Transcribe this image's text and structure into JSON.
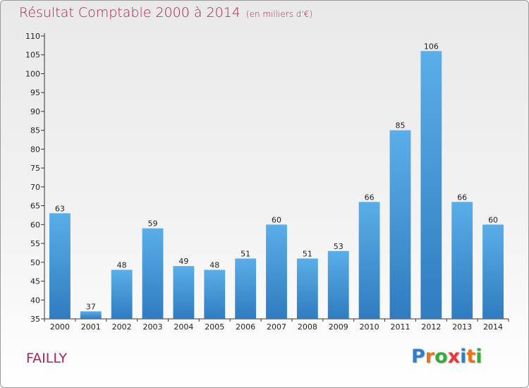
{
  "chart_data": {
    "type": "bar",
    "title": "Résultat Comptable 2000 à 2014",
    "subtitle": "(en milliers d'€)",
    "categories": [
      "2000",
      "2001",
      "2002",
      "2003",
      "2004",
      "2005",
      "2006",
      "2007",
      "2008",
      "2009",
      "2010",
      "2011",
      "2012",
      "2013",
      "2014"
    ],
    "values": [
      63,
      37,
      48,
      59,
      49,
      48,
      51,
      60,
      51,
      53,
      66,
      85,
      106,
      66,
      60
    ],
    "ylim": [
      35,
      110
    ],
    "yticks": [
      35,
      40,
      45,
      50,
      55,
      60,
      65,
      70,
      75,
      80,
      85,
      90,
      95,
      100,
      105,
      110
    ],
    "xlabel": "",
    "ylabel": "",
    "grid": false,
    "bar_color": "#4a9fe0"
  },
  "commune": "FAILLY",
  "logo": {
    "letters": [
      "P",
      "r",
      "o",
      "x",
      "i",
      "t",
      "i"
    ],
    "colors": [
      "#2f7fc8",
      "#e8731a",
      "#3aa83a",
      "#e23a3a",
      "#2f7fc8",
      "#e8731a",
      "#3aa83a"
    ]
  }
}
